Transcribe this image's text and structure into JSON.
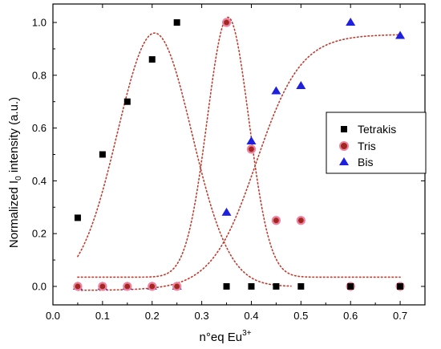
{
  "chart_data": {
    "type": "scatter",
    "xlabel": {
      "main": "n°eq Eu",
      "sup": "3+"
    },
    "ylabel": {
      "pre": "Normalized I",
      "sub": "0",
      "post": " intensity (a.u.)"
    },
    "xlim": [
      0.0,
      0.75
    ],
    "ylim": [
      -0.07,
      1.07
    ],
    "xticks": [
      "0.0",
      "0.1",
      "0.2",
      "0.3",
      "0.4",
      "0.5",
      "0.6",
      "0.7"
    ],
    "yticks": [
      "0.0",
      "0.2",
      "0.4",
      "0.6",
      "0.8",
      "1.0"
    ],
    "legend_position": "right-middle",
    "grid": false,
    "series": [
      {
        "name": "Tetrakis",
        "marker": "square",
        "color": "#000000",
        "x": [
          0.05,
          0.1,
          0.15,
          0.2,
          0.25,
          0.35,
          0.4,
          0.45,
          0.5,
          0.6,
          0.7
        ],
        "y": [
          0.26,
          0.5,
          0.7,
          0.86,
          1.0,
          0.0,
          0.0,
          0.0,
          0.0,
          0.0,
          0.0
        ]
      },
      {
        "name": "Tris",
        "marker": "circle",
        "color": "#a0281e",
        "edge_color": "#f080a0",
        "x": [
          0.05,
          0.1,
          0.15,
          0.2,
          0.25,
          0.35,
          0.4,
          0.45,
          0.5,
          0.6,
          0.7
        ],
        "y": [
          0.0,
          0.0,
          0.0,
          0.0,
          0.0,
          1.0,
          0.52,
          0.25,
          0.25,
          0.0,
          0.0
        ]
      },
      {
        "name": "Bis",
        "marker": "triangle",
        "color": "#1f1fe0",
        "x": [
          0.05,
          0.1,
          0.15,
          0.2,
          0.25,
          0.35,
          0.4,
          0.45,
          0.5,
          0.6,
          0.7
        ],
        "y": [
          0.0,
          0.0,
          0.0,
          0.0,
          0.0,
          0.28,
          0.55,
          0.74,
          0.76,
          1.0,
          0.95
        ]
      }
    ],
    "fit_curves": {
      "color": "#c0392b",
      "style": "dotted",
      "curves": [
        {
          "kind": "gaussian",
          "amplitude": 0.96,
          "center": 0.205,
          "width": 0.075,
          "baseline": 0.0,
          "x_range": [
            0.05,
            0.48
          ]
        },
        {
          "kind": "gaussian",
          "amplitude": 0.985,
          "center": 0.353,
          "width": 0.042,
          "baseline": 0.035,
          "x_range": [
            0.05,
            0.7
          ]
        },
        {
          "kind": "sigmoid",
          "low": -0.015,
          "high": 0.955,
          "center": 0.41,
          "scale": 0.045,
          "x_range": [
            0.05,
            0.7
          ]
        }
      ]
    }
  }
}
